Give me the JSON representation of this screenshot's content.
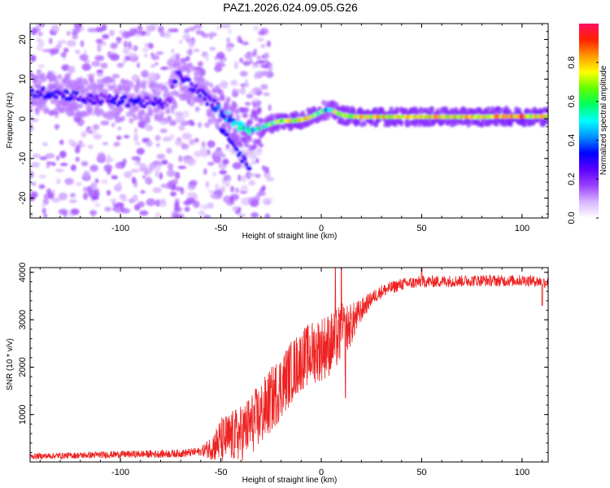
{
  "title": "PAZ1.2026.024.09.05.G26",
  "chart_data": [
    {
      "type": "heatmap",
      "name": "spectrogram",
      "xlabel": "Height of straight line (km)",
      "ylabel": "Frequency (Hz)",
      "xlim": [
        -145,
        113
      ],
      "ylim": [
        -25,
        24
      ],
      "xticks": [
        -100,
        -50,
        0,
        50,
        100
      ],
      "xtick_labels": [
        "-100",
        "-50",
        "0",
        "50",
        "100"
      ],
      "yticks": [
        -20,
        -10,
        0,
        10,
        20
      ],
      "ytick_labels": [
        "-20",
        "-10",
        "0",
        "10",
        "20"
      ],
      "ridge": {
        "x": [
          -133,
          -125,
          -118,
          -110,
          -100,
          -92,
          -86,
          -80,
          -76,
          -72,
          -68,
          -64,
          -60,
          -56,
          -52,
          -48,
          -44,
          -40,
          -37,
          -34,
          -30,
          -25,
          -20,
          -15,
          -10,
          -5,
          0,
          3,
          6,
          10,
          15,
          20,
          30,
          40,
          50,
          60,
          70,
          80,
          90,
          100,
          105,
          110,
          113
        ],
        "y": [
          6.5,
          6,
          5,
          5,
          4.5,
          4.5,
          4,
          3.8,
          4,
          11,
          10,
          8,
          6.5,
          4.5,
          3,
          1,
          -0.5,
          -2,
          -2.5,
          -2.8,
          -2.3,
          -1.2,
          -0.5,
          -0.5,
          -0.3,
          0.5,
          1.8,
          2.4,
          2,
          1,
          0.6,
          0.5,
          0.5,
          0.5,
          0.5,
          0.5,
          0.5,
          0.5,
          0.6,
          0.6,
          0.6,
          0.6,
          0.5
        ],
        "amplitude": [
          0.32,
          0.3,
          0.28,
          0.25,
          0.28,
          0.3,
          0.26,
          0.24,
          0.22,
          0.3,
          0.28,
          0.3,
          0.32,
          0.3,
          0.34,
          0.42,
          0.45,
          0.5,
          0.55,
          0.5,
          0.55,
          0.62,
          0.66,
          0.72,
          0.7,
          0.68,
          0.6,
          0.45,
          0.62,
          0.7,
          0.72,
          0.78,
          0.75,
          0.72,
          0.72,
          0.74,
          0.72,
          0.76,
          0.8,
          0.85,
          0.75,
          0.8,
          0.7
        ]
      },
      "colorbar": {
        "label": "Normalized spectral amplitude",
        "range": [
          0,
          1
        ],
        "ticks": [
          0.0,
          0.2,
          0.4,
          0.6,
          0.8
        ],
        "tick_labels": [
          "0.0",
          "0.2",
          "0.4",
          "0.6",
          "0.8"
        ],
        "colors": [
          "#ffffff",
          "#d8b4ff",
          "#9a40ff",
          "#5a00ff",
          "#0000ff",
          "#0090ff",
          "#00ffff",
          "#00ff60",
          "#60ff00",
          "#ffff00",
          "#ff9900",
          "#ff2000",
          "#ff1060"
        ]
      }
    },
    {
      "type": "line",
      "name": "snr",
      "xlabel": "Height of straight line (km)",
      "ylabel": "SNR (10 * v/v)",
      "xlim": [
        -145,
        113
      ],
      "ylim": [
        0,
        4100
      ],
      "xticks": [
        -100,
        -50,
        0,
        50,
        100
      ],
      "xtick_labels": [
        "-100",
        "-50",
        "0",
        "50",
        "100"
      ],
      "yticks": [
        1000,
        2000,
        3000,
        4000
      ],
      "ytick_labels": [
        "1000",
        "2000",
        "3000",
        "4000"
      ],
      "color": "#ee2222",
      "mean_curve": {
        "x": [
          -145,
          -120,
          -100,
          -80,
          -70,
          -60,
          -55,
          -50,
          -45,
          -40,
          -35,
          -30,
          -25,
          -20,
          -15,
          -10,
          -5,
          0,
          5,
          10,
          15,
          20,
          25,
          30,
          40,
          50,
          60,
          70,
          80,
          90,
          100,
          105,
          110,
          113
        ],
        "y": [
          120,
          140,
          160,
          170,
          180,
          220,
          300,
          450,
          520,
          600,
          800,
          1000,
          1300,
          1600,
          1900,
          2150,
          2300,
          2400,
          2500,
          2700,
          2900,
          3200,
          3450,
          3600,
          3750,
          3800,
          3810,
          3820,
          3830,
          3820,
          3830,
          3820,
          3800,
          3780
        ]
      },
      "noise_amplitude": {
        "x": [
          -145,
          -60,
          -55,
          -50,
          -40,
          -30,
          -20,
          -10,
          0,
          10,
          20,
          25,
          40,
          113
        ],
        "y": [
          60,
          90,
          250,
          500,
          600,
          700,
          700,
          650,
          700,
          650,
          250,
          150,
          130,
          120
        ]
      },
      "spikes": [
        {
          "x": 7,
          "y": 4100
        },
        {
          "x": 10,
          "y": 4100
        },
        {
          "x": 12,
          "y": 1350
        },
        {
          "x": 50,
          "y": 4100
        },
        {
          "x": 110,
          "y": 3300
        }
      ]
    }
  ]
}
